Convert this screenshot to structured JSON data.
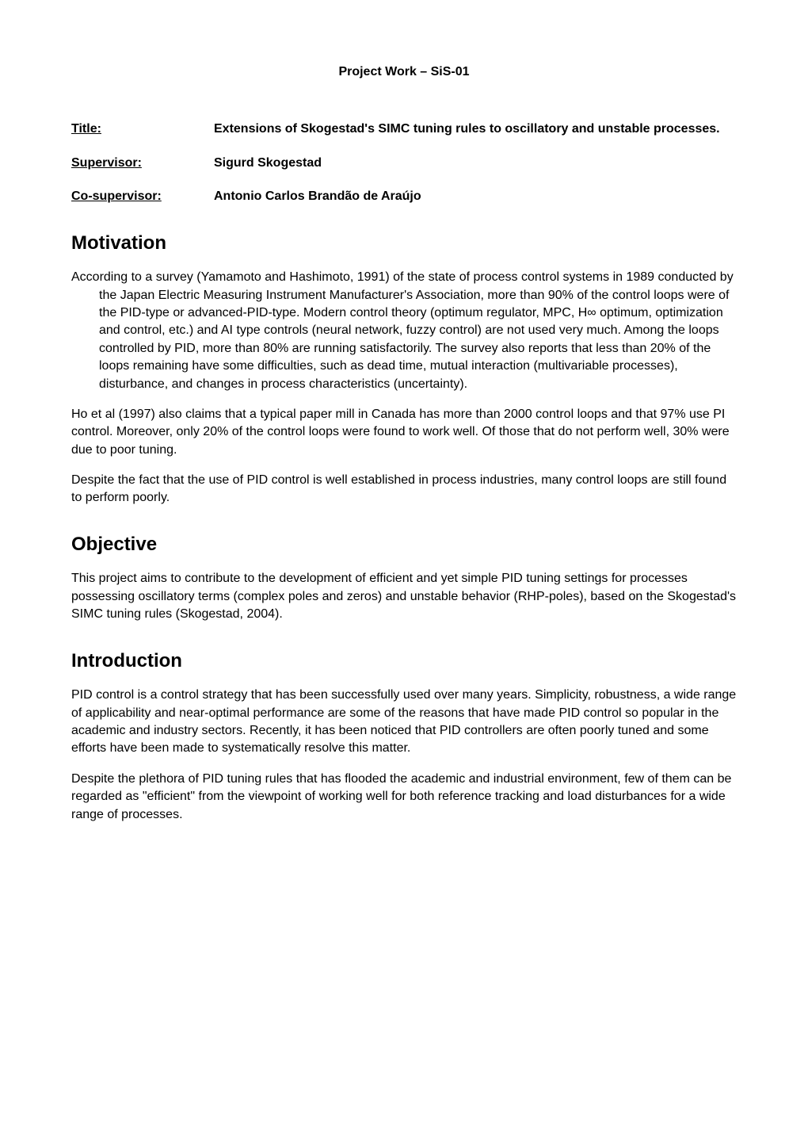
{
  "header": {
    "project_work": "Project Work – SiS-01"
  },
  "meta": {
    "title_label": "Title:",
    "title_value": "Extensions of Skogestad's SIMC tuning rules to oscillatory and unstable processes.",
    "supervisor_label": "Supervisor:",
    "supervisor_value": "Sigurd Skogestad",
    "cosupervisor_label": "Co-supervisor:",
    "cosupervisor_value": "Antonio Carlos Brandão de Araújo"
  },
  "sections": {
    "motivation": {
      "heading": "Motivation",
      "p1": "According to a survey (Yamamoto and Hashimoto, 1991) of the state of process control systems in 1989 conducted by the Japan Electric Measuring Instrument Manufacturer's Association, more than 90% of the control loops were of the PID-type or advanced-PID-type. Modern control theory (optimum regulator, MPC, H∞ optimum, optimization and control, etc.) and AI type controls (neural network, fuzzy control) are not used very much. Among the loops controlled by PID, more than 80% are running satisfactorily. The survey also reports that less than 20% of the loops remaining have some difficulties, such as dead time, mutual interaction (multivariable processes), disturbance, and changes in process characteristics (uncertainty).",
      "p2": "Ho et al (1997) also claims that a typical paper mill in Canada has more than 2000 control loops and that 97% use PI control. Moreover, only 20% of the control loops were found to work well. Of those that do not perform well, 30% were due to poor tuning.",
      "p3": "Despite the fact that the use of PID control is well established in process industries, many control loops are still found to perform poorly."
    },
    "objective": {
      "heading": "Objective",
      "p1": "This project aims to contribute to the development of efficient and yet simple PID tuning settings for processes possessing oscillatory terms (complex poles and zeros) and unstable behavior (RHP-poles), based on the Skogestad's SIMC tuning rules (Skogestad, 2004)."
    },
    "introduction": {
      "heading": "Introduction",
      "p1": "PID control is a control strategy that has been successfully used over many years. Simplicity, robustness, a wide range of applicability and near-optimal performance are some of the reasons that have made PID control so popular in the academic and industry sectors. Recently, it has been noticed that PID controllers are often poorly tuned and some efforts have been made to systematically resolve this matter.",
      "p2": "Despite the plethora of PID tuning rules that has flooded the academic and industrial environment, few of them can be regarded as \"efficient\" from the viewpoint of working well for both reference tracking and load disturbances for a wide range of processes."
    }
  },
  "styling": {
    "background_color": "#ffffff",
    "text_color": "#000000",
    "body_font_family": "Arial, Helvetica, sans-serif",
    "body_fontsize": 16,
    "heading_fontsize": 24,
    "heading_fontweight": "bold",
    "meta_label_width": 180,
    "page_padding_v": 80,
    "page_padding_h": 90,
    "line_height": 1.4
  }
}
